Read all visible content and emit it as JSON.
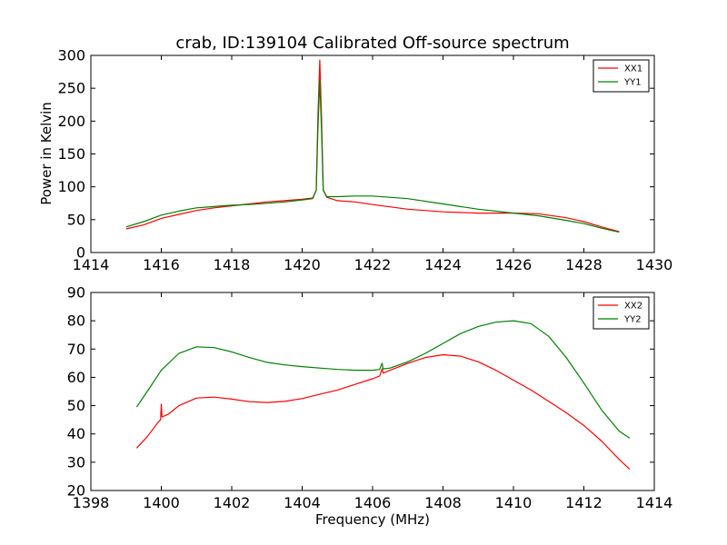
{
  "title": "crab, ID:139104 Calibrated Off-source spectrum",
  "colors": {
    "red": "#ff0000",
    "green": "#008000"
  },
  "chart_data": [
    {
      "type": "line",
      "xlabel": "",
      "ylabel": "Power in Kelvin",
      "xlim": [
        1414,
        1430
      ],
      "ylim": [
        0,
        300
      ],
      "xticks": [
        "1414",
        "1416",
        "1418",
        "1420",
        "1422",
        "1424",
        "1426",
        "1428",
        "1430"
      ],
      "yticks": [
        "0",
        "50",
        "100",
        "150",
        "200",
        "250",
        "300"
      ],
      "legend_position": "top-right",
      "series": [
        {
          "name": "XX1",
          "color": "#ff0000",
          "points": [
            [
              1415.0,
              36
            ],
            [
              1415.5,
              42
            ],
            [
              1416.0,
              52
            ],
            [
              1416.5,
              58
            ],
            [
              1417.0,
              64
            ],
            [
              1417.5,
              68
            ],
            [
              1418.0,
              71
            ],
            [
              1418.5,
              74
            ],
            [
              1419.0,
              77
            ],
            [
              1419.5,
              79
            ],
            [
              1420.0,
              81
            ],
            [
              1420.3,
              83
            ],
            [
              1420.4,
              95
            ],
            [
              1420.45,
              210
            ],
            [
              1420.5,
              293
            ],
            [
              1420.55,
              205
            ],
            [
              1420.6,
              95
            ],
            [
              1420.7,
              84
            ],
            [
              1421.0,
              79
            ],
            [
              1421.5,
              77
            ],
            [
              1422.0,
              73
            ],
            [
              1423.0,
              66
            ],
            [
              1424.0,
              62
            ],
            [
              1425.0,
              60
            ],
            [
              1426.0,
              60
            ],
            [
              1426.7,
              59
            ],
            [
              1427.5,
              53
            ],
            [
              1428.0,
              47
            ],
            [
              1428.5,
              39
            ],
            [
              1429.0,
              32
            ]
          ]
        },
        {
          "name": "YY1",
          "color": "#008000",
          "points": [
            [
              1415.0,
              39
            ],
            [
              1415.5,
              47
            ],
            [
              1416.0,
              57
            ],
            [
              1416.5,
              63
            ],
            [
              1417.0,
              68
            ],
            [
              1417.5,
              70
            ],
            [
              1418.0,
              72
            ],
            [
              1418.5,
              73
            ],
            [
              1419.0,
              75
            ],
            [
              1419.5,
              77
            ],
            [
              1420.0,
              80
            ],
            [
              1420.3,
              82
            ],
            [
              1420.4,
              95
            ],
            [
              1420.45,
              190
            ],
            [
              1420.5,
              263
            ],
            [
              1420.55,
              185
            ],
            [
              1420.6,
              95
            ],
            [
              1420.7,
              85
            ],
            [
              1421.0,
              85
            ],
            [
              1421.5,
              86
            ],
            [
              1422.0,
              86
            ],
            [
              1423.0,
              82
            ],
            [
              1424.0,
              74
            ],
            [
              1425.0,
              66
            ],
            [
              1426.0,
              60
            ],
            [
              1426.7,
              56
            ],
            [
              1427.5,
              49
            ],
            [
              1428.0,
              44
            ],
            [
              1428.5,
              37
            ],
            [
              1429.0,
              31
            ]
          ]
        }
      ]
    },
    {
      "type": "line",
      "xlabel": "Frequency (MHz)",
      "ylabel": "",
      "xlim": [
        1398,
        1414
      ],
      "ylim": [
        20,
        90
      ],
      "xticks": [
        "1398",
        "1400",
        "1402",
        "1404",
        "1406",
        "1408",
        "1410",
        "1412",
        "1414"
      ],
      "yticks": [
        "20",
        "30",
        "40",
        "50",
        "60",
        "70",
        "80",
        "90"
      ],
      "legend_position": "top-right",
      "series": [
        {
          "name": "XX2",
          "color": "#ff0000",
          "points": [
            [
              1399.3,
              35
            ],
            [
              1399.6,
              39
            ],
            [
              1399.9,
              44
            ],
            [
              1399.98,
              45
            ],
            [
              1400.0,
              50.5
            ],
            [
              1400.02,
              46
            ],
            [
              1400.2,
              47
            ],
            [
              1400.5,
              50
            ],
            [
              1401.0,
              52.7
            ],
            [
              1401.5,
              53
            ],
            [
              1402.0,
              52.3
            ],
            [
              1402.5,
              51.4
            ],
            [
              1403.0,
              51.1
            ],
            [
              1403.5,
              51.5
            ],
            [
              1404.0,
              52.5
            ],
            [
              1404.5,
              54
            ],
            [
              1405.0,
              55.5
            ],
            [
              1405.5,
              57.5
            ],
            [
              1406.0,
              59.5
            ],
            [
              1406.2,
              60.5
            ],
            [
              1406.27,
              63
            ],
            [
              1406.3,
              61.5
            ],
            [
              1406.5,
              62.5
            ],
            [
              1407.0,
              65
            ],
            [
              1407.5,
              67
            ],
            [
              1408.0,
              68
            ],
            [
              1408.5,
              67.5
            ],
            [
              1409.0,
              65.5
            ],
            [
              1409.5,
              62.5
            ],
            [
              1410.0,
              59
            ],
            [
              1410.5,
              55.5
            ],
            [
              1411.0,
              51.5
            ],
            [
              1411.5,
              47.5
            ],
            [
              1412.0,
              43
            ],
            [
              1412.5,
              37.5
            ],
            [
              1413.0,
              31
            ],
            [
              1413.3,
              27.5
            ]
          ]
        },
        {
          "name": "YY2",
          "color": "#008000",
          "points": [
            [
              1399.3,
              49.5
            ],
            [
              1399.6,
              55
            ],
            [
              1400.0,
              62.5
            ],
            [
              1400.5,
              68.5
            ],
            [
              1401.0,
              70.8
            ],
            [
              1401.5,
              70.5
            ],
            [
              1402.0,
              69
            ],
            [
              1402.5,
              67
            ],
            [
              1403.0,
              65.3
            ],
            [
              1403.5,
              64.4
            ],
            [
              1404.0,
              63.8
            ],
            [
              1404.5,
              63.3
            ],
            [
              1405.0,
              62.8
            ],
            [
              1405.5,
              62.5
            ],
            [
              1406.0,
              62.5
            ],
            [
              1406.2,
              62.8
            ],
            [
              1406.27,
              65
            ],
            [
              1406.3,
              63
            ],
            [
              1406.5,
              63.3
            ],
            [
              1407.0,
              65.5
            ],
            [
              1407.5,
              68.5
            ],
            [
              1408.0,
              72
            ],
            [
              1408.5,
              75.5
            ],
            [
              1409.0,
              78
            ],
            [
              1409.5,
              79.5
            ],
            [
              1410.0,
              80
            ],
            [
              1410.5,
              79
            ],
            [
              1411.0,
              74.5
            ],
            [
              1411.5,
              67
            ],
            [
              1412.0,
              58
            ],
            [
              1412.5,
              48.5
            ],
            [
              1413.0,
              41
            ],
            [
              1413.3,
              38.5
            ]
          ]
        }
      ]
    }
  ]
}
